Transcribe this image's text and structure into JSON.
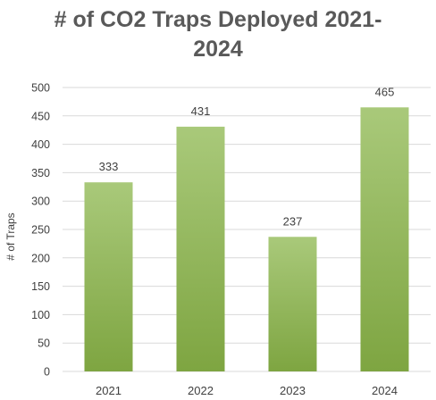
{
  "chart_data": {
    "type": "bar",
    "title_lines": [
      "# of CO2 Traps Deployed 2021-",
      "2024"
    ],
    "ylabel": "# of Traps",
    "xlabel": "",
    "categories": [
      "2021",
      "2022",
      "2023",
      "2024"
    ],
    "values": [
      333,
      431,
      237,
      465
    ],
    "data_labels": [
      "333",
      "431",
      "237",
      "465"
    ],
    "ylim": [
      0,
      500
    ],
    "yticks": [
      0,
      50,
      100,
      150,
      200,
      250,
      300,
      350,
      400,
      450,
      500
    ],
    "grid": true,
    "legend": "none",
    "colors": {
      "bar_top": "#a9c97a",
      "bar_bottom": "#7ea541",
      "grid": "#d9d9d9",
      "text": "#404040"
    }
  }
}
